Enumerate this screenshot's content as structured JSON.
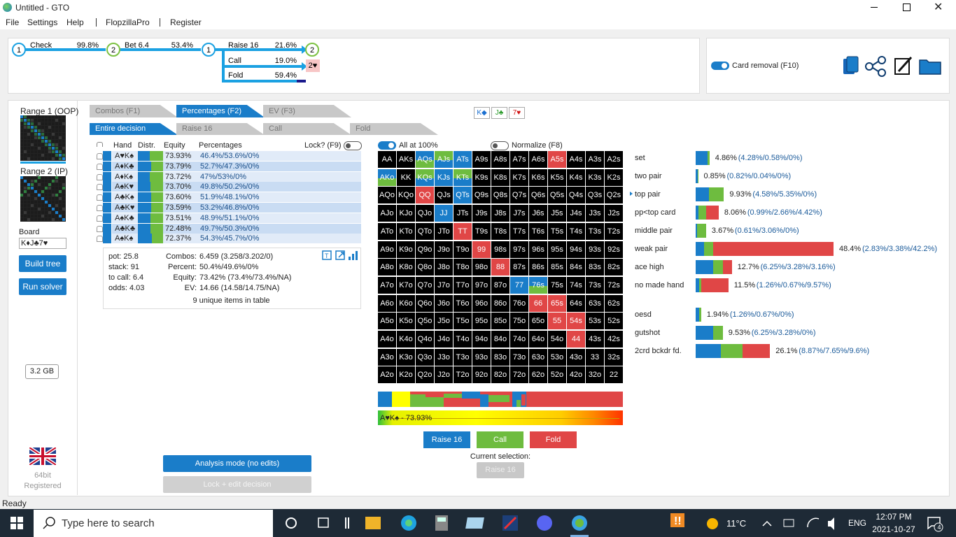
{
  "window": {
    "title": "Untitled - GTO"
  },
  "menu": [
    "File",
    "Settings",
    "Help",
    "FlopzillaPro",
    "Register"
  ],
  "tree": {
    "nodes": [
      "1",
      "2",
      "1",
      "2",
      "2♥"
    ],
    "actions": [
      {
        "label": "Check",
        "pct": "99.8%"
      },
      {
        "label": "Bet 6.4",
        "pct": "53.4%"
      },
      {
        "label": "Raise 16",
        "pct": "21.6%"
      },
      {
        "label": "Call",
        "pct": "19.0%"
      },
      {
        "label": "Fold",
        "pct": "59.4%"
      }
    ]
  },
  "card_removal": "Card removal (F10)",
  "left": {
    "range1": "Range 1 (OOP)",
    "range2": "Range 2 (IP)",
    "board_label": "Board",
    "board": "K♦J♣7♥",
    "buttons": [
      "Build tree",
      "Run solver"
    ],
    "memory": "3.2 GB",
    "bits": "64bit",
    "registered": "Registered"
  },
  "tabs": [
    "Combos (F1)",
    "Percentages (F2)",
    "EV (F3)"
  ],
  "active_tab": 1,
  "subtabs": [
    "Entire decision",
    "Raise 16",
    "Call",
    "Fold"
  ],
  "active_subtab": 0,
  "board_cards": [
    "K◆",
    "J♣",
    "7♥"
  ],
  "table": {
    "headers": [
      "Hand",
      "Distr.",
      "Equity",
      "Percentages"
    ],
    "lock": "Lock? (F9)",
    "rows": [
      {
        "hand": "A♥K♠",
        "equity": "73.93%",
        "percentages": "46.4%/53.6%/0%",
        "distr": [
          46.4,
          53.6,
          0
        ]
      },
      {
        "hand": "A♦K♣",
        "equity": "73.79%",
        "percentages": "52.7%/47.3%/0%",
        "distr": [
          52.7,
          47.3,
          0
        ]
      },
      {
        "hand": "A♦K♠",
        "equity": "73.72%",
        "percentages": "47%/53%/0%",
        "distr": [
          47,
          53,
          0
        ]
      },
      {
        "hand": "A♠K♥",
        "equity": "73.70%",
        "percentages": "49.8%/50.2%/0%",
        "distr": [
          49.8,
          50.2,
          0
        ]
      },
      {
        "hand": "A♣K♠",
        "equity": "73.60%",
        "percentages": "51.9%/48.1%/0%",
        "distr": [
          51.9,
          48.1,
          0
        ]
      },
      {
        "hand": "A♣K♥",
        "equity": "73.59%",
        "percentages": "53.2%/46.8%/0%",
        "distr": [
          53.2,
          46.8,
          0
        ]
      },
      {
        "hand": "A♠K♣",
        "equity": "73.51%",
        "percentages": "48.9%/51.1%/0%",
        "distr": [
          48.9,
          51.1,
          0
        ]
      },
      {
        "hand": "A♣K♣",
        "equity": "72.48%",
        "percentages": "49.7%/50.3%/0%",
        "distr": [
          49.7,
          50.3,
          0
        ]
      },
      {
        "hand": "A♠K♠",
        "equity": "72.37%",
        "percentages": "54.3%/45.7%/0%",
        "distr": [
          54.3,
          45.7,
          0
        ]
      }
    ]
  },
  "summary": {
    "left": [
      "pot: 25.8",
      "stack: 91",
      "to call: 6.4",
      "odds: 4.03"
    ],
    "right": [
      [
        "Combos:",
        "6.459 (3.258/3.202/0)"
      ],
      [
        "Percent:",
        "50.4%/49.6%/0%"
      ],
      [
        "Equity:",
        "73.42% (73.4%/73.4%/NA)"
      ],
      [
        "EV:",
        "14.66 (14.58/14.75/NA)"
      ]
    ],
    "footer": "9 unique items in table"
  },
  "grid": {
    "toggles": [
      "All at 100%",
      "Normalize (F8)"
    ],
    "cells": [
      [
        "AA",
        "AKs",
        "AQs",
        "AJs",
        "ATs",
        "A9s",
        "A8s",
        "A7s",
        "A6s",
        "A5s",
        "A4s",
        "A3s",
        "A2s"
      ],
      [
        "AKo",
        "KK",
        "KQs",
        "KJs",
        "KTs",
        "K9s",
        "K8s",
        "K7s",
        "K6s",
        "K5s",
        "K4s",
        "K3s",
        "K2s"
      ],
      [
        "AQo",
        "KQo",
        "QQ",
        "QJs",
        "QTs",
        "Q9s",
        "Q8s",
        "Q7s",
        "Q6s",
        "Q5s",
        "Q4s",
        "Q3s",
        "Q2s"
      ],
      [
        "AJo",
        "KJo",
        "QJo",
        "JJ",
        "JTs",
        "J9s",
        "J8s",
        "J7s",
        "J6s",
        "J5s",
        "J4s",
        "J3s",
        "J2s"
      ],
      [
        "ATo",
        "KTo",
        "QTo",
        "JTo",
        "TT",
        "T9s",
        "T8s",
        "T7s",
        "T6s",
        "T5s",
        "T4s",
        "T3s",
        "T2s"
      ],
      [
        "A9o",
        "K9o",
        "Q9o",
        "J9o",
        "T9o",
        "99",
        "98s",
        "97s",
        "96s",
        "95s",
        "94s",
        "93s",
        "92s"
      ],
      [
        "A8o",
        "K8o",
        "Q8o",
        "J8o",
        "T8o",
        "98o",
        "88",
        "87s",
        "86s",
        "85s",
        "84s",
        "83s",
        "82s"
      ],
      [
        "A7o",
        "K7o",
        "Q7o",
        "J7o",
        "T7o",
        "97o",
        "87o",
        "77",
        "76s",
        "75s",
        "74s",
        "73s",
        "72s"
      ],
      [
        "A6o",
        "K6o",
        "Q6o",
        "J6o",
        "T6o",
        "96o",
        "86o",
        "76o",
        "66",
        "65s",
        "64s",
        "63s",
        "62s"
      ],
      [
        "A5o",
        "K5o",
        "Q5o",
        "J5o",
        "T5o",
        "95o",
        "85o",
        "75o",
        "65o",
        "55",
        "54s",
        "53s",
        "52s"
      ],
      [
        "A4o",
        "K4o",
        "Q4o",
        "J4o",
        "T4o",
        "94o",
        "84o",
        "74o",
        "64o",
        "54o",
        "44",
        "43s",
        "42s"
      ],
      [
        "A3o",
        "K3o",
        "Q3o",
        "J3o",
        "T3o",
        "93o",
        "83o",
        "73o",
        "63o",
        "53o",
        "43o",
        "33",
        "32s"
      ],
      [
        "A2o",
        "K2o",
        "Q2o",
        "J2o",
        "T2o",
        "92o",
        "82o",
        "72o",
        "62o",
        "52o",
        "42o",
        "32o",
        "22"
      ]
    ],
    "cell_color": "#000000",
    "highlights": {
      "AQs": [
        "#1a7dc9",
        "#6ebc3f"
      ],
      "AJs": [
        "#6ebc3f",
        "#1a7dc9"
      ],
      "ATs": [
        "#1a7dc9",
        "#1a7dc9"
      ],
      "A5s": [
        "#e04646",
        "#e04646"
      ],
      "AKo": [
        "#1a7dc9",
        "#6ebc3f"
      ],
      "KQs": [
        "#6ebc3f",
        "#1a7dc9"
      ],
      "KJs": [
        "#1a7dc9",
        "#1a7dc9"
      ],
      "KTs": [
        "#6ebc3f",
        "#1a7dc9"
      ],
      "QQ": [
        "#e04646",
        "#e04646"
      ],
      "QTs": [
        "#1a7dc9",
        "#1a7dc9"
      ],
      "JJ": [
        "#1a7dc9",
        "#1a7dc9"
      ],
      "TT": [
        "#e04646",
        "#e04646"
      ],
      "99": [
        "#e04646",
        "#e04646"
      ],
      "88": [
        "#e04646",
        "#e04646"
      ],
      "77": [
        "#1a7dc9",
        "#1a7dc9"
      ],
      "76s": [
        "#1a7dc9",
        "#6ebc3f"
      ],
      "66": [
        "#e04646",
        "#e04646"
      ],
      "65s": [
        "#e04646",
        "#e04646"
      ],
      "55": [
        "#e04646",
        "#e04646"
      ],
      "54s": [
        "#e04646",
        "#e04646"
      ],
      "44": [
        "#e04646",
        "#e04646"
      ]
    }
  },
  "selected_label": "A♥K♠ - 73.93%",
  "actions": [
    "Raise 16",
    "Call",
    "Fold"
  ],
  "action_colors": [
    "#1a7dc9",
    "#6ebc3f",
    "#e04646"
  ],
  "current_selection_label": "Current selection:",
  "current_selection": "Raise 16",
  "mode_buttons": [
    "Analysis mode (no edits)",
    "Lock + edit decision"
  ],
  "categories": [
    {
      "name": "set",
      "total": "4.86%",
      "detail": "(4.28%/0.58%/0%)",
      "parts": [
        4.28,
        0.58,
        0
      ]
    },
    {
      "name": "two pair",
      "total": "0.85%",
      "detail": "(0.82%/0.04%/0%)",
      "parts": [
        0.82,
        0.04,
        0
      ]
    },
    {
      "name": "top pair",
      "total": "9.93%",
      "detail": "(4.58%/5.35%/0%)",
      "parts": [
        4.58,
        5.35,
        0
      ]
    },
    {
      "name": "pp<top card",
      "total": "8.06%",
      "detail": "(0.99%/2.66%/4.42%)",
      "parts": [
        0.99,
        2.66,
        4.42
      ]
    },
    {
      "name": "middle pair",
      "total": "3.67%",
      "detail": "(0.61%/3.06%/0%)",
      "parts": [
        0.61,
        3.06,
        0
      ]
    },
    {
      "name": "weak pair",
      "total": "48.4%",
      "detail": "(2.83%/3.38%/42.2%)",
      "parts": [
        2.83,
        3.38,
        42.2
      ]
    },
    {
      "name": "ace high",
      "total": "12.7%",
      "detail": "(6.25%/3.28%/3.16%)",
      "parts": [
        6.25,
        3.28,
        3.16
      ]
    },
    {
      "name": "no made hand",
      "total": "11.5%",
      "detail": "(1.26%/0.67%/9.57%)",
      "parts": [
        1.26,
        0.67,
        9.57
      ]
    }
  ],
  "draws": [
    {
      "name": "oesd",
      "total": "1.94%",
      "detail": "(1.26%/0.67%/0%)",
      "parts": [
        1.26,
        0.67,
        0
      ]
    },
    {
      "name": "gutshot",
      "total": "9.53%",
      "detail": "(6.25%/3.28%/0%)",
      "parts": [
        6.25,
        3.28,
        0
      ]
    },
    {
      "name": "2crd bckdr fd.",
      "total": "26.1%",
      "detail": "(8.87%/7.65%/9.6%)",
      "parts": [
        8.87,
        7.65,
        9.6
      ]
    }
  ],
  "status": "Ready",
  "taskbar": {
    "search": "Type here to search",
    "weather": "11°C",
    "language": "ENG",
    "time": "12:07 PM",
    "date": "2021-10-27",
    "notifications": "4"
  }
}
